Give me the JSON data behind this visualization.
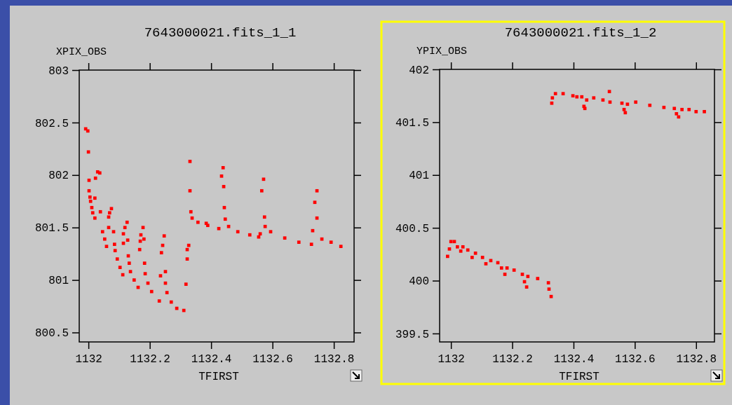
{
  "chart_data": [
    {
      "type": "scatter",
      "title": "7643000021.fits_1_1",
      "xlabel": "TFIRST",
      "ylabel": "XPIX_OBS",
      "marker": "square",
      "grid": false,
      "xlim": [
        1131.97,
        1132.866
      ],
      "ylim": [
        800.41,
        803
      ],
      "xticks": [
        {
          "value": 1132,
          "label": "1132"
        },
        {
          "value": 1132.2,
          "label": "1132.2"
        },
        {
          "value": 1132.4,
          "label": "1132.4"
        },
        {
          "value": 1132.6,
          "label": "1132.6"
        },
        {
          "value": 1132.8,
          "label": "1132.8"
        }
      ],
      "yticks": [
        {
          "value": 800.5,
          "label": "800.5"
        },
        {
          "value": 801,
          "label": "801"
        },
        {
          "value": 801.5,
          "label": "801.5"
        },
        {
          "value": 802,
          "label": "802"
        },
        {
          "value": 802.5,
          "label": "802.5"
        },
        {
          "value": 803,
          "label": "803"
        }
      ],
      "series": [
        {
          "color": "#ff0000",
          "x": [
            1131.991,
            1131.998,
            1132.0,
            1132.03,
            1132.037,
            1132.002,
            1132.023,
            1132.002,
            1132.005,
            1132.021,
            1132.007,
            1132.011,
            1132.014,
            1132.021,
            1132.039,
            1132.075,
            1132.069,
            1132.066,
            1132.046,
            1132.053,
            1132.059,
            1132.066,
            1132.082,
            1132.085,
            1132.087,
            1132.094,
            1132.103,
            1132.112,
            1132.126,
            1132.119,
            1132.114,
            1132.128,
            1132.114,
            1132.13,
            1132.133,
            1132.137,
            1132.149,
            1132.162,
            1132.178,
            1132.171,
            1132.181,
            1132.169,
            1132.167,
            1132.183,
            1132.185,
            1132.194,
            1132.206,
            1132.231,
            1132.247,
            1132.242,
            1132.238,
            1132.251,
            1132.235,
            1132.251,
            1132.256,
            1132.27,
            1132.288,
            1132.311,
            1132.327,
            1132.322,
            1132.322,
            1132.318,
            1132.331,
            1132.331,
            1132.334,
            1132.338,
            1132.357,
            1132.384,
            1132.389,
            1132.425,
            1132.439,
            1132.434,
            1132.441,
            1132.443,
            1132.446,
            1132.457,
            1132.487,
            1132.526,
            1132.555,
            1132.56,
            1132.571,
            1132.565,
            1132.574,
            1132.576,
            1132.594,
            1132.64,
            1132.686,
            1132.727,
            1132.745,
            1132.738,
            1132.745,
            1132.731,
            1132.761,
            1132.791,
            1132.823
          ],
          "values": [
            802.44,
            802.42,
            802.22,
            802.03,
            802.02,
            801.95,
            801.97,
            801.85,
            801.79,
            801.78,
            801.75,
            801.69,
            801.64,
            801.59,
            801.65,
            801.68,
            801.64,
            801.6,
            801.46,
            801.39,
            801.32,
            801.5,
            801.46,
            801.34,
            801.28,
            801.2,
            801.12,
            801.05,
            801.55,
            801.5,
            801.44,
            801.38,
            801.35,
            801.23,
            801.16,
            801.08,
            801.0,
            800.93,
            801.5,
            801.43,
            801.39,
            801.37,
            801.29,
            801.16,
            801.06,
            800.97,
            800.89,
            800.8,
            801.42,
            801.33,
            801.26,
            801.08,
            801.04,
            800.97,
            800.88,
            800.79,
            800.73,
            800.71,
            801.33,
            801.29,
            801.2,
            800.96,
            802.13,
            801.85,
            801.65,
            801.59,
            801.55,
            801.54,
            801.52,
            801.49,
            802.07,
            801.99,
            801.89,
            801.69,
            801.58,
            801.51,
            801.46,
            801.43,
            801.41,
            801.44,
            801.96,
            801.85,
            801.6,
            801.51,
            801.46,
            801.4,
            801.36,
            801.34,
            801.85,
            801.74,
            801.59,
            801.47,
            801.39,
            801.36,
            801.32
          ]
        }
      ]
    },
    {
      "type": "scatter",
      "title": "7643000021.fits_1_2",
      "xlabel": "TFIRST",
      "ylabel": "YPIX_OBS",
      "marker": "square",
      "grid": false,
      "xlim": [
        1131.963,
        1132.86
      ],
      "ylim": [
        399.42,
        402
      ],
      "xticks": [
        {
          "value": 1132,
          "label": "1132"
        },
        {
          "value": 1132.2,
          "label": "1132.2"
        },
        {
          "value": 1132.4,
          "label": "1132.4"
        },
        {
          "value": 1132.6,
          "label": "1132.6"
        },
        {
          "value": 1132.8,
          "label": "1132.8"
        }
      ],
      "yticks": [
        {
          "value": 399.5,
          "label": "399.5"
        },
        {
          "value": 400,
          "label": "400"
        },
        {
          "value": 400.5,
          "label": "400.5"
        },
        {
          "value": 401,
          "label": "401"
        },
        {
          "value": 401.5,
          "label": "401.5"
        },
        {
          "value": 402,
          "label": "402"
        }
      ],
      "series": [
        {
          "color": "#ff0000",
          "x": [
            1131.989,
            1131.995,
            1132.0,
            1132.011,
            1132.021,
            1132.032,
            1132.039,
            1132.055,
            1132.069,
            1132.08,
            1132.103,
            1132.114,
            1132.13,
            1132.153,
            1132.165,
            1132.176,
            1132.183,
            1132.206,
            1132.233,
            1132.24,
            1132.247,
            1132.251,
            1132.283,
            1132.318,
            1132.32,
            1132.327,
            1132.329,
            1132.331,
            1132.341,
            1132.366,
            1132.398,
            1132.411,
            1132.427,
            1132.434,
            1132.437,
            1132.443,
            1132.466,
            1132.496,
            1132.517,
            1132.519,
            1132.558,
            1132.565,
            1132.569,
            1132.576,
            1132.603,
            1132.649,
            1132.695,
            1132.729,
            1132.736,
            1132.743,
            1132.754,
            1132.777,
            1132.8,
            1132.827
          ],
          "values": [
            400.23,
            400.3,
            400.37,
            400.37,
            400.32,
            400.28,
            400.32,
            400.29,
            400.22,
            400.26,
            400.22,
            400.16,
            400.19,
            400.17,
            400.12,
            400.06,
            400.12,
            400.1,
            400.06,
            399.99,
            399.94,
            400.04,
            400.02,
            399.98,
            399.92,
            399.85,
            401.68,
            401.73,
            401.77,
            401.77,
            401.75,
            401.74,
            401.74,
            401.65,
            401.63,
            401.71,
            401.73,
            401.71,
            401.79,
            401.69,
            401.68,
            401.62,
            401.59,
            401.67,
            401.69,
            401.66,
            401.64,
            401.63,
            401.58,
            401.55,
            401.62,
            401.62,
            401.6,
            401.6
          ]
        }
      ]
    }
  ]
}
